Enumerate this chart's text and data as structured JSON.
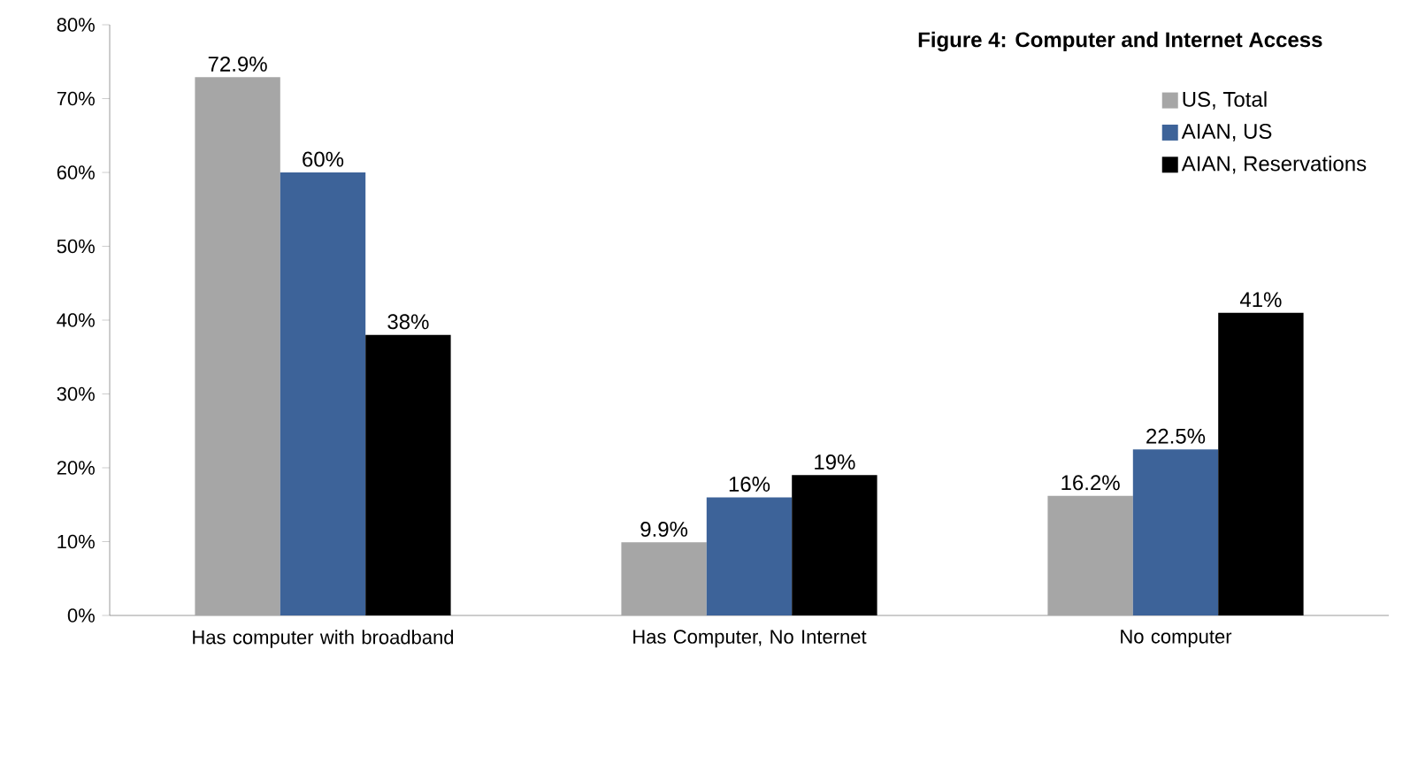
{
  "chart_data": {
    "type": "bar",
    "title": "Figure 4: Computer and Internet Access",
    "categories": [
      "Has computer with broadband",
      "Has Computer, No Internet",
      "No computer"
    ],
    "series": [
      {
        "name": "US, Total",
        "color": "#a6a6a6",
        "values": [
          72.9,
          9.9,
          16.2
        ],
        "value_labels": [
          "72.9%",
          "9.9%",
          "16.2%"
        ]
      },
      {
        "name": "AIAN, US",
        "color": "#3d6399",
        "values": [
          60,
          16,
          22.5
        ],
        "value_labels": [
          "60%",
          "16%",
          "22.5%"
        ]
      },
      {
        "name": "AIAN, Reservations",
        "color": "#000000",
        "values": [
          38,
          19,
          41
        ],
        "value_labels": [
          "38%",
          "19%",
          "41%"
        ]
      }
    ],
    "ylim": [
      0,
      80
    ],
    "yticks": [
      {
        "value": 0,
        "label": "0%"
      },
      {
        "value": 10,
        "label": "10%"
      },
      {
        "value": 20,
        "label": "20%"
      },
      {
        "value": 30,
        "label": "30%"
      },
      {
        "value": 40,
        "label": "40%"
      },
      {
        "value": 50,
        "label": "50%"
      },
      {
        "value": 60,
        "label": "60%"
      },
      {
        "value": 70,
        "label": "70%"
      },
      {
        "value": 80,
        "label": "80%"
      }
    ],
    "grid": false,
    "legend": "top right"
  }
}
